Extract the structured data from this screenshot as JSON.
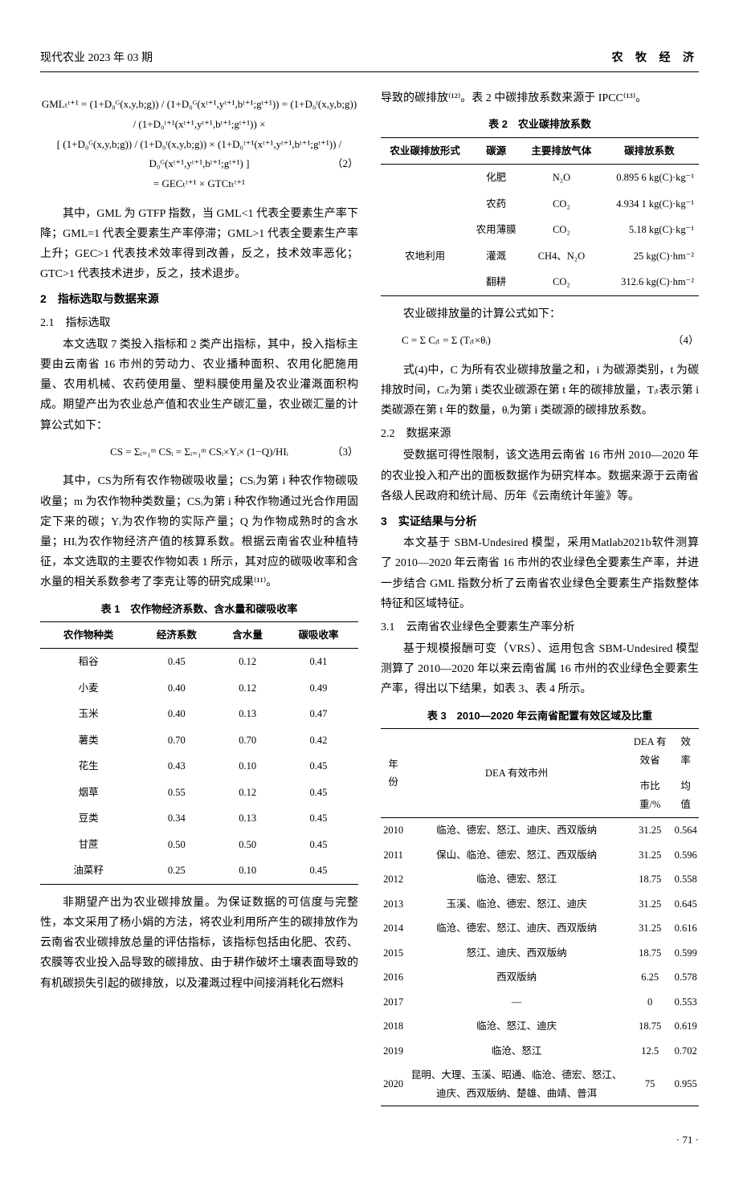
{
  "header": {
    "left": "现代农业  2023 年 03 期",
    "right": "农 牧 经 济"
  },
  "left_col": {
    "formula2": "GMLₜᵗ⁺¹ = (1+D₀ᴳ(x,y,b;g)) / (1+D₀ᴳ(xᵗ⁺¹,yᵗ⁺¹,bᵗ⁺¹;gᵗ⁺¹)) = (1+D₀ᵗ(x,y,b;g)) / (1+D₀ᵗ⁺¹(xᵗ⁺¹,yᵗ⁺¹,bᵗ⁺¹;gᵗ⁺¹)) ×",
    "formula2_line2": "[ (1+D₀ᴳ(x,y,b;g)) / (1+D₀ᵗ(x,y,b;g)) × (1+D₀ᵗ⁺¹(xᵗ⁺¹,yᵗ⁺¹,bᵗ⁺¹;gᵗ⁺¹)) / D₀ᴳ(xᵗ⁺¹,yᵗ⁺¹,bᵗ⁺¹;gᵗ⁺¹) ]",
    "formula2_line3": "= GECₜᵗ⁺¹ × GTCtₜᵗ⁺¹",
    "formula2_num": "（2）",
    "p1": "其中，GML 为 GTFP 指数，当 GML<1 代表全要素生产率下降；GML=1 代表全要素生产率停滞；GML>1 代表全要素生产率上升；GEC>1 代表技术效率得到改善，反之，技术效率恶化；GTC>1 代表技术进步，反之，技术退步。",
    "sec2": "2　指标选取与数据来源",
    "sec21": "2.1　指标选取",
    "p2": "本文选取 7 类投入指标和 2 类产出指标，其中，投入指标主要由云南省 16 市州的劳动力、农业播种面积、农用化肥施用量、农用机械、农药使用量、塑料膜使用量及农业灌溉面积构成。期望产出为农业总产值和农业生产碳汇量，农业碳汇量的计算公式如下：",
    "formula3": "CS = Σᵢ₌₁ᵐ CSᵢ = Σᵢ₌₁ᵐ CSᵢ×Yᵢ× (1−Q)/HIᵢ",
    "formula3_num": "（3）",
    "p3": "其中，CS为所有农作物碳吸收量；CSᵢ为第 i 种农作物碳吸收量；m 为农作物种类数量；CSᵢ为第 i 种农作物通过光合作用固定下来的碳；Yᵢ为农作物的实际产量；Q 为作物成熟时的含水量；HIᵢ为农作物经济产值的核算系数。根据云南省农业种植特征，本文选取的主要农作物如表 1 所示，其对应的碳吸收率和含水量的相关系数参考了李克让等的研究成果⁽¹¹⁾。",
    "table1_caption": "表 1　农作物经济系数、含水量和碳吸收率",
    "p4": "非期望产出为农业碳排放量。为保证数据的可信度与完整性，本文采用了杨小娟的方法，将农业利用所产生的碳排放作为云南省农业碳排放总量的评估指标，该指标包括由化肥、农药、农膜等农业投入品导致的碳排放、由于耕作破坏土壤表面导致的有机碳损失引起的碳排放，以及灌溉过程中间接消耗化石燃料"
  },
  "table1": {
    "headers": [
      "农作物种类",
      "经济系数",
      "含水量",
      "碳吸收率"
    ],
    "rows": [
      [
        "稻谷",
        "0.45",
        "0.12",
        "0.41"
      ],
      [
        "小麦",
        "0.40",
        "0.12",
        "0.49"
      ],
      [
        "玉米",
        "0.40",
        "0.13",
        "0.47"
      ],
      [
        "薯类",
        "0.70",
        "0.70",
        "0.42"
      ],
      [
        "花生",
        "0.43",
        "0.10",
        "0.45"
      ],
      [
        "烟草",
        "0.55",
        "0.12",
        "0.45"
      ],
      [
        "豆类",
        "0.34",
        "0.13",
        "0.45"
      ],
      [
        "甘蔗",
        "0.50",
        "0.50",
        "0.45"
      ],
      [
        "油菜籽",
        "0.25",
        "0.10",
        "0.45"
      ]
    ]
  },
  "right_col": {
    "p0": "导致的碳排放⁽¹²⁾。表 2 中碳排放系数来源于 IPCC⁽¹³⁾。",
    "table2_caption": "表 2　农业碳排放系数",
    "p5": "农业碳排放量的计算公式如下：",
    "formula4": "C = Σ Cᵢₜ = Σ (Tᵢₜ×θᵢ)",
    "formula4_num": "（4）",
    "p6": "式(4)中，C 为所有农业碳排放量之和，i 为碳源类别，t 为碳排放时间，Cᵢₜ为第 i 类农业碳源在第 t 年的碳排放量，Tᵢₜ表示第 i 类碳源在第 t 年的数量，θᵢ为第 i 类碳源的碳排放系数。",
    "sec22": "2.2　数据来源",
    "p7": "受数据可得性限制，该文选用云南省 16 市州 2010—2020 年的农业投入和产出的面板数据作为研究样本。数据来源于云南省各级人民政府和统计局、历年《云南统计年鉴》等。",
    "sec3": "3　实证结果与分析",
    "p8": "本文基于 SBM-Undesired 模型，采用Matlab2021b软件测算了 2010—2020 年云南省 16 市州的农业绿色全要素生产率，并进一步结合 GML 指数分析了云南省农业绿色全要素生产指数整体特征和区域特征。",
    "sec31": "3.1　云南省农业绿色全要素生产率分析",
    "p9": "基于规模报酬可变（VRS）、运用包含 SBM-Undesired 模型测算了 2010—2020 年以来云南省属 16 市州的农业绿色全要素生产率，得出以下结果，如表 3、表 4 所示。",
    "table3_caption": "表 3　2010—2020 年云南省配置有效区域及比重"
  },
  "table2": {
    "headers": [
      "农业碳排放形式",
      "碳源",
      "主要排放气体",
      "碳排放系数"
    ],
    "rows": [
      [
        "",
        "化肥",
        "N₂O",
        "0.895 6 kg(C)·kg⁻¹"
      ],
      [
        "",
        "农药",
        "CO₂",
        "4.934 1 kg(C)·kg⁻¹"
      ],
      [
        "",
        "农用薄膜",
        "CO₂",
        "5.18 kg(C)·kg⁻¹"
      ],
      [
        "农地利用",
        "灌溉",
        "CH4、N₂O",
        "25 kg(C)·hm⁻²"
      ],
      [
        "",
        "翻耕",
        "CO₂",
        "312.6 kg(C)·hm⁻²"
      ]
    ]
  },
  "table3": {
    "headers": [
      "年份",
      "DEA 有效市州",
      "DEA 有效省市比重/%",
      "效率均值"
    ],
    "rows": [
      [
        "2010",
        "临沧、德宏、怒江、迪庆、西双版纳",
        "31.25",
        "0.564"
      ],
      [
        "2011",
        "保山、临沧、德宏、怒江、西双版纳",
        "31.25",
        "0.596"
      ],
      [
        "2012",
        "临沧、德宏、怒江",
        "18.75",
        "0.558"
      ],
      [
        "2013",
        "玉溪、临沧、德宏、怒江、迪庆",
        "31.25",
        "0.645"
      ],
      [
        "2014",
        "临沧、德宏、怒江、迪庆、西双版纳",
        "31.25",
        "0.616"
      ],
      [
        "2015",
        "怒江、迪庆、西双版纳",
        "18.75",
        "0.599"
      ],
      [
        "2016",
        "西双版纳",
        "6.25",
        "0.578"
      ],
      [
        "2017",
        "—",
        "0",
        "0.553"
      ],
      [
        "2018",
        "临沧、怒江、迪庆",
        "18.75",
        "0.619"
      ],
      [
        "2019",
        "临沧、怒江",
        "12.5",
        "0.702"
      ],
      [
        "2020",
        "昆明、大理、玉溪、昭通、临沧、德宏、怒江、迪庆、西双版纳、楚雄、曲靖、普洱",
        "75",
        "0.955"
      ]
    ]
  },
  "page": "· 71 ·"
}
